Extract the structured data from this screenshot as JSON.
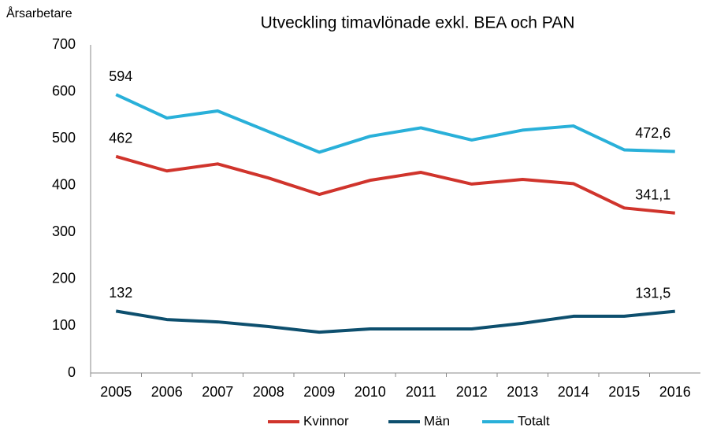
{
  "chart_data": {
    "type": "line",
    "title": "Utveckling timavlönade exkl. BEA och PAN",
    "y_label": "Årsarbetare",
    "categories": [
      "2005",
      "2006",
      "2007",
      "2008",
      "2009",
      "2010",
      "2011",
      "2012",
      "2013",
      "2014",
      "2015",
      "2016"
    ],
    "series": [
      {
        "name": "Kvinnor",
        "color": "#d0342c",
        "values": [
          462,
          431,
          446,
          416,
          381,
          411,
          428,
          403,
          413,
          404,
          352,
          341.1
        ],
        "value_labels": [
          "462",
          null,
          null,
          null,
          null,
          null,
          null,
          null,
          null,
          null,
          null,
          "341,1"
        ]
      },
      {
        "name": "Män",
        "color": "#0d4f6e",
        "values": [
          132,
          114,
          109,
          99,
          87,
          94,
          94,
          94,
          106,
          121,
          121,
          131.5
        ],
        "value_labels": [
          "132",
          null,
          null,
          null,
          null,
          null,
          null,
          null,
          null,
          null,
          null,
          "131,5"
        ]
      },
      {
        "name": "Totalt",
        "color": "#29b0d9",
        "values": [
          594,
          544,
          559,
          515,
          471,
          505,
          523,
          497,
          518,
          527,
          476,
          472.6
        ],
        "value_labels": [
          "594",
          null,
          null,
          null,
          null,
          null,
          null,
          null,
          null,
          null,
          null,
          "472,6"
        ]
      }
    ],
    "ylim": [
      0,
      700
    ],
    "yticks": [
      0,
      100,
      200,
      300,
      400,
      500,
      600,
      700
    ],
    "grid": false,
    "legend": "bottom"
  }
}
